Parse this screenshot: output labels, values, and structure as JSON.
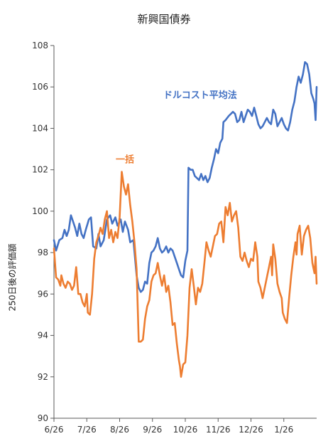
{
  "chart_data": {
    "type": "line",
    "title": "新興国債券",
    "xlabel": "",
    "ylabel": "250日後の評価額",
    "x_ticks": [
      "6/26",
      "7/26",
      "8/26",
      "9/26",
      "10/26",
      "11/26",
      "12/26",
      "1/26"
    ],
    "x_tick_index": [
      0,
      31,
      62,
      93,
      124,
      155,
      186,
      217
    ],
    "x_range": [
      0,
      248
    ],
    "y_ticks": [
      90,
      92,
      94,
      96,
      98,
      100,
      102,
      104,
      106,
      108
    ],
    "ylim": [
      90,
      108
    ],
    "grid": false,
    "legend": "none",
    "series": [
      {
        "name": "ドルコスト平均法",
        "color": "#4472C4",
        "points": [
          [
            0,
            98.6
          ],
          [
            2,
            98.1
          ],
          [
            5,
            98.6
          ],
          [
            8,
            98.7
          ],
          [
            10,
            99.1
          ],
          [
            12,
            98.8
          ],
          [
            14,
            99.1
          ],
          [
            16,
            99.8
          ],
          [
            18,
            99.5
          ],
          [
            20,
            99.2
          ],
          [
            22,
            98.8
          ],
          [
            24,
            99.4
          ],
          [
            26,
            98.9
          ],
          [
            28,
            98.7
          ],
          [
            30,
            99.1
          ],
          [
            33,
            99.6
          ],
          [
            35,
            99.7
          ],
          [
            37,
            98.3
          ],
          [
            40,
            98.2
          ],
          [
            42,
            98.9
          ],
          [
            44,
            98.3
          ],
          [
            47,
            98.6
          ],
          [
            50,
            99.6
          ],
          [
            53,
            99.8
          ],
          [
            55,
            99.4
          ],
          [
            58,
            99.7
          ],
          [
            60,
            99.3
          ],
          [
            63,
            99.6
          ],
          [
            65,
            99.0
          ],
          [
            67,
            99.5
          ],
          [
            70,
            99.1
          ],
          [
            72,
            98.5
          ],
          [
            75,
            98.6
          ],
          [
            78,
            96.9
          ],
          [
            80,
            96.3
          ],
          [
            82,
            96.1
          ],
          [
            84,
            96.2
          ],
          [
            86,
            96.6
          ],
          [
            88,
            96.5
          ],
          [
            90,
            97.5
          ],
          [
            92,
            98.0
          ],
          [
            94,
            98.1
          ],
          [
            96,
            98.3
          ],
          [
            98,
            98.7
          ],
          [
            100,
            98.2
          ],
          [
            102,
            98.0
          ],
          [
            104,
            98.1
          ],
          [
            106,
            98.3
          ],
          [
            108,
            98.0
          ],
          [
            110,
            98.2
          ],
          [
            112,
            98.1
          ],
          [
            114,
            97.8
          ],
          [
            116,
            97.5
          ],
          [
            118,
            97.2
          ],
          [
            120,
            96.9
          ],
          [
            122,
            96.8
          ],
          [
            124,
            97.6
          ],
          [
            126,
            98.1
          ],
          [
            127,
            102.1
          ],
          [
            129,
            102.0
          ],
          [
            131,
            102.0
          ],
          [
            133,
            101.7
          ],
          [
            135,
            101.6
          ],
          [
            137,
            101.5
          ],
          [
            139,
            101.8
          ],
          [
            141,
            101.5
          ],
          [
            143,
            101.7
          ],
          [
            145,
            101.4
          ],
          [
            147,
            101.6
          ],
          [
            149,
            102.1
          ],
          [
            151,
            102.5
          ],
          [
            153,
            103.0
          ],
          [
            155,
            102.8
          ],
          [
            157,
            103.3
          ],
          [
            159,
            103.5
          ],
          [
            160,
            104.3
          ],
          [
            162,
            104.4
          ],
          [
            165,
            104.6
          ],
          [
            167,
            104.7
          ],
          [
            169,
            104.8
          ],
          [
            171,
            104.7
          ],
          [
            173,
            104.3
          ],
          [
            175,
            104.4
          ],
          [
            177,
            104.8
          ],
          [
            179,
            104.3
          ],
          [
            181,
            104.6
          ],
          [
            183,
            104.9
          ],
          [
            185,
            104.8
          ],
          [
            187,
            104.6
          ],
          [
            189,
            105.0
          ],
          [
            191,
            104.6
          ],
          [
            193,
            104.2
          ],
          [
            195,
            104.0
          ],
          [
            197,
            104.1
          ],
          [
            199,
            104.3
          ],
          [
            201,
            104.5
          ],
          [
            203,
            104.3
          ],
          [
            205,
            104.2
          ],
          [
            207,
            104.9
          ],
          [
            209,
            104.7
          ],
          [
            211,
            104.1
          ],
          [
            213,
            104.3
          ],
          [
            215,
            104.5
          ],
          [
            217,
            104.2
          ],
          [
            219,
            104.0
          ],
          [
            221,
            103.9
          ],
          [
            223,
            104.3
          ],
          [
            225,
            104.9
          ],
          [
            227,
            105.3
          ],
          [
            229,
            106.0
          ],
          [
            231,
            106.5
          ],
          [
            233,
            106.2
          ],
          [
            235,
            106.6
          ],
          [
            237,
            107.2
          ],
          [
            239,
            107.1
          ],
          [
            241,
            106.6
          ],
          [
            243,
            105.7
          ],
          [
            245,
            105.4
          ],
          [
            246,
            105.2
          ],
          [
            247,
            104.4
          ],
          [
            248,
            106.0
          ]
        ]
      },
      {
        "name": "一括",
        "color": "#ED7D31",
        "points": [
          [
            0,
            98.2
          ],
          [
            2,
            96.8
          ],
          [
            4,
            96.7
          ],
          [
            6,
            96.4
          ],
          [
            7,
            96.9
          ],
          [
            9,
            96.5
          ],
          [
            11,
            96.3
          ],
          [
            13,
            96.6
          ],
          [
            15,
            96.5
          ],
          [
            17,
            96.2
          ],
          [
            19,
            96.4
          ],
          [
            21,
            97.3
          ],
          [
            23,
            96.0
          ],
          [
            25,
            96.0
          ],
          [
            27,
            95.6
          ],
          [
            29,
            95.4
          ],
          [
            31,
            96.0
          ],
          [
            32,
            95.1
          ],
          [
            34,
            95.0
          ],
          [
            36,
            96.0
          ],
          [
            38,
            97.7
          ],
          [
            40,
            98.5
          ],
          [
            42,
            98.8
          ],
          [
            44,
            99.2
          ],
          [
            46,
            98.9
          ],
          [
            48,
            99.6
          ],
          [
            50,
            100.0
          ],
          [
            52,
            98.7
          ],
          [
            54,
            99.1
          ],
          [
            56,
            98.5
          ],
          [
            58,
            99.0
          ],
          [
            60,
            98.7
          ],
          [
            62,
            99.7
          ],
          [
            64,
            101.9
          ],
          [
            66,
            101.2
          ],
          [
            68,
            100.8
          ],
          [
            70,
            101.3
          ],
          [
            72,
            100.3
          ],
          [
            74,
            99.5
          ],
          [
            76,
            98.5
          ],
          [
            78,
            97.2
          ],
          [
            80,
            93.7
          ],
          [
            82,
            93.7
          ],
          [
            84,
            93.8
          ],
          [
            86,
            94.8
          ],
          [
            88,
            95.4
          ],
          [
            90,
            95.7
          ],
          [
            92,
            96.6
          ],
          [
            94,
            96.9
          ],
          [
            96,
            97.0
          ],
          [
            98,
            97.5
          ],
          [
            100,
            96.9
          ],
          [
            102,
            96.4
          ],
          [
            104,
            96.9
          ],
          [
            106,
            96.1
          ],
          [
            108,
            96.4
          ],
          [
            110,
            95.6
          ],
          [
            112,
            94.5
          ],
          [
            114,
            94.6
          ],
          [
            116,
            93.6
          ],
          [
            118,
            92.8
          ],
          [
            119,
            92.5
          ],
          [
            120,
            92.0
          ],
          [
            122,
            92.6
          ],
          [
            124,
            92.7
          ],
          [
            126,
            94.0
          ],
          [
            128,
            96.3
          ],
          [
            130,
            97.2
          ],
          [
            132,
            96.4
          ],
          [
            134,
            95.5
          ],
          [
            136,
            96.3
          ],
          [
            138,
            96.1
          ],
          [
            140,
            96.5
          ],
          [
            142,
            97.5
          ],
          [
            144,
            98.5
          ],
          [
            146,
            98.1
          ],
          [
            148,
            97.8
          ],
          [
            150,
            98.3
          ],
          [
            152,
            98.8
          ],
          [
            154,
            98.9
          ],
          [
            156,
            99.4
          ],
          [
            158,
            99.5
          ],
          [
            160,
            98.5
          ],
          [
            162,
            100.2
          ],
          [
            164,
            99.8
          ],
          [
            166,
            100.4
          ],
          [
            168,
            99.5
          ],
          [
            170,
            99.8
          ],
          [
            172,
            100.0
          ],
          [
            174,
            99.2
          ],
          [
            176,
            97.8
          ],
          [
            178,
            97.6
          ],
          [
            180,
            98.0
          ],
          [
            182,
            97.6
          ],
          [
            184,
            97.3
          ],
          [
            186,
            97.7
          ],
          [
            188,
            97.6
          ],
          [
            190,
            98.5
          ],
          [
            192,
            97.8
          ],
          [
            193,
            96.6
          ],
          [
            195,
            96.3
          ],
          [
            197,
            95.8
          ],
          [
            199,
            96.3
          ],
          [
            201,
            96.8
          ],
          [
            203,
            97.3
          ],
          [
            205,
            97.8
          ],
          [
            206,
            96.9
          ],
          [
            207,
            98.4
          ],
          [
            209,
            97.7
          ],
          [
            211,
            96.5
          ],
          [
            213,
            96.1
          ],
          [
            215,
            95.8
          ],
          [
            216,
            95.1
          ],
          [
            218,
            94.8
          ],
          [
            220,
            94.6
          ],
          [
            222,
            95.8
          ],
          [
            224,
            96.9
          ],
          [
            226,
            97.8
          ],
          [
            228,
            98.5
          ],
          [
            229,
            97.9
          ],
          [
            230,
            98.9
          ],
          [
            232,
            99.3
          ],
          [
            234,
            97.9
          ],
          [
            236,
            98.8
          ],
          [
            238,
            99.1
          ],
          [
            240,
            99.3
          ],
          [
            242,
            98.7
          ],
          [
            244,
            97.5
          ],
          [
            246,
            97.0
          ],
          [
            247,
            97.8
          ],
          [
            248,
            96.5
          ]
        ]
      }
    ],
    "annotations": [
      {
        "text": "ドルコスト平均法",
        "series": 0,
        "color": "#4472C4"
      },
      {
        "text": "一括",
        "series": 1,
        "color": "#ED7D31"
      }
    ]
  },
  "colors": {
    "axis": "#595959",
    "tick_text": "#333333"
  }
}
